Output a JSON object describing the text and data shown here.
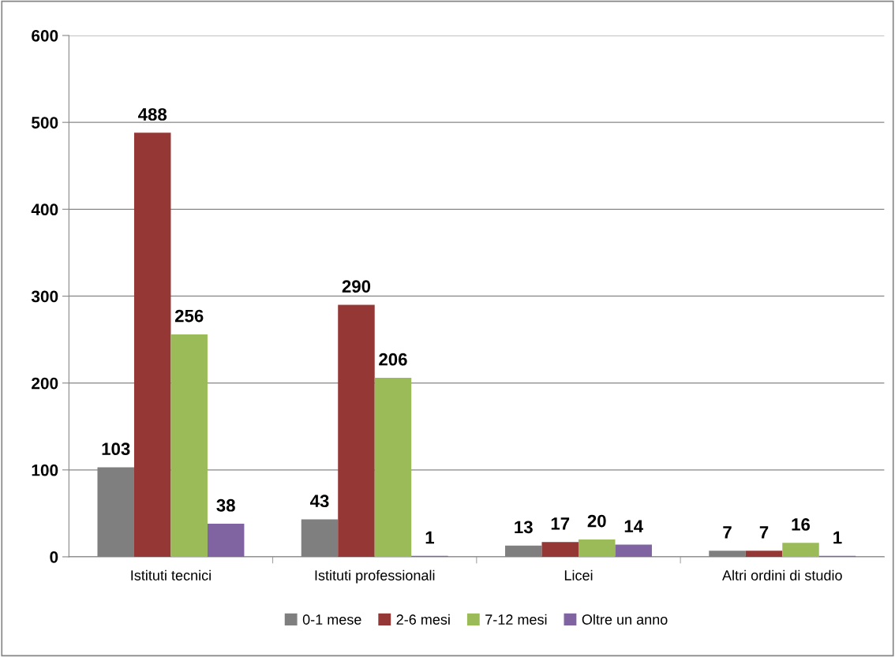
{
  "chart_data": {
    "type": "bar",
    "categories": [
      "Istituti tecnici",
      "Istituti professionali",
      "Licei",
      "Altri ordini di studio"
    ],
    "series": [
      {
        "name": "0-1 mese",
        "color": "#7f7f7f",
        "values": [
          103,
          43,
          13,
          7
        ]
      },
      {
        "name": "2-6 mesi",
        "color": "#953735",
        "values": [
          488,
          290,
          17,
          7
        ]
      },
      {
        "name": "7-12 mesi",
        "color": "#9bbb59",
        "values": [
          256,
          206,
          20,
          16
        ]
      },
      {
        "name": "Oltre un anno",
        "color": "#8064a2",
        "values": [
          38,
          1,
          14,
          1
        ]
      }
    ],
    "ylim": [
      0,
      600
    ],
    "yticks": [
      0,
      100,
      200,
      300,
      400,
      500,
      600
    ],
    "grid": "y",
    "legend": "bottom",
    "data_labels": true
  }
}
